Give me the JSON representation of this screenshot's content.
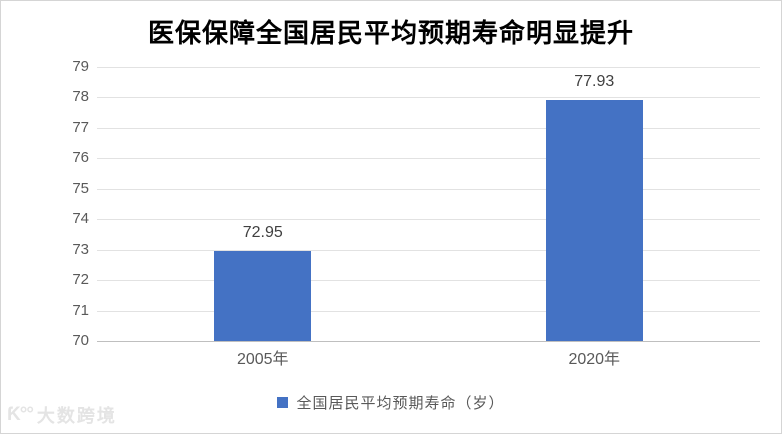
{
  "title": "医保保障全国居民平均预期寿命明显提升",
  "legend": {
    "label": "全国居民平均预期寿命（岁）",
    "swatch_color": "#4472C4"
  },
  "watermark": {
    "logo": "Ƙ°°",
    "text": "大数跨境"
  },
  "colors": {
    "bar": "#4472C4",
    "gridline": "#E2E2E2",
    "axis_line": "#BFBFBF",
    "tick_label": "#595959",
    "category_label": "#595959",
    "data_label": "#404040",
    "title": "#000000",
    "frame_border": "#D5D5D5",
    "watermark": "#E4E4E4"
  },
  "chart_data": {
    "type": "bar",
    "categories": [
      "2005年",
      "2020年"
    ],
    "series": [
      {
        "name": "全国居民平均预期寿命（岁）",
        "values": [
          72.95,
          77.93
        ]
      }
    ],
    "data_labels": [
      "72.95",
      "77.93"
    ],
    "title": "医保保障全国居民平均预期寿命明显提升",
    "xlabel": "",
    "ylabel": "",
    "ylim": [
      70,
      79
    ],
    "yticks": [
      70,
      71,
      72,
      73,
      74,
      75,
      76,
      77,
      78,
      79
    ],
    "grid": true,
    "legend_position": "bottom",
    "bar_color": "#4472C4"
  }
}
